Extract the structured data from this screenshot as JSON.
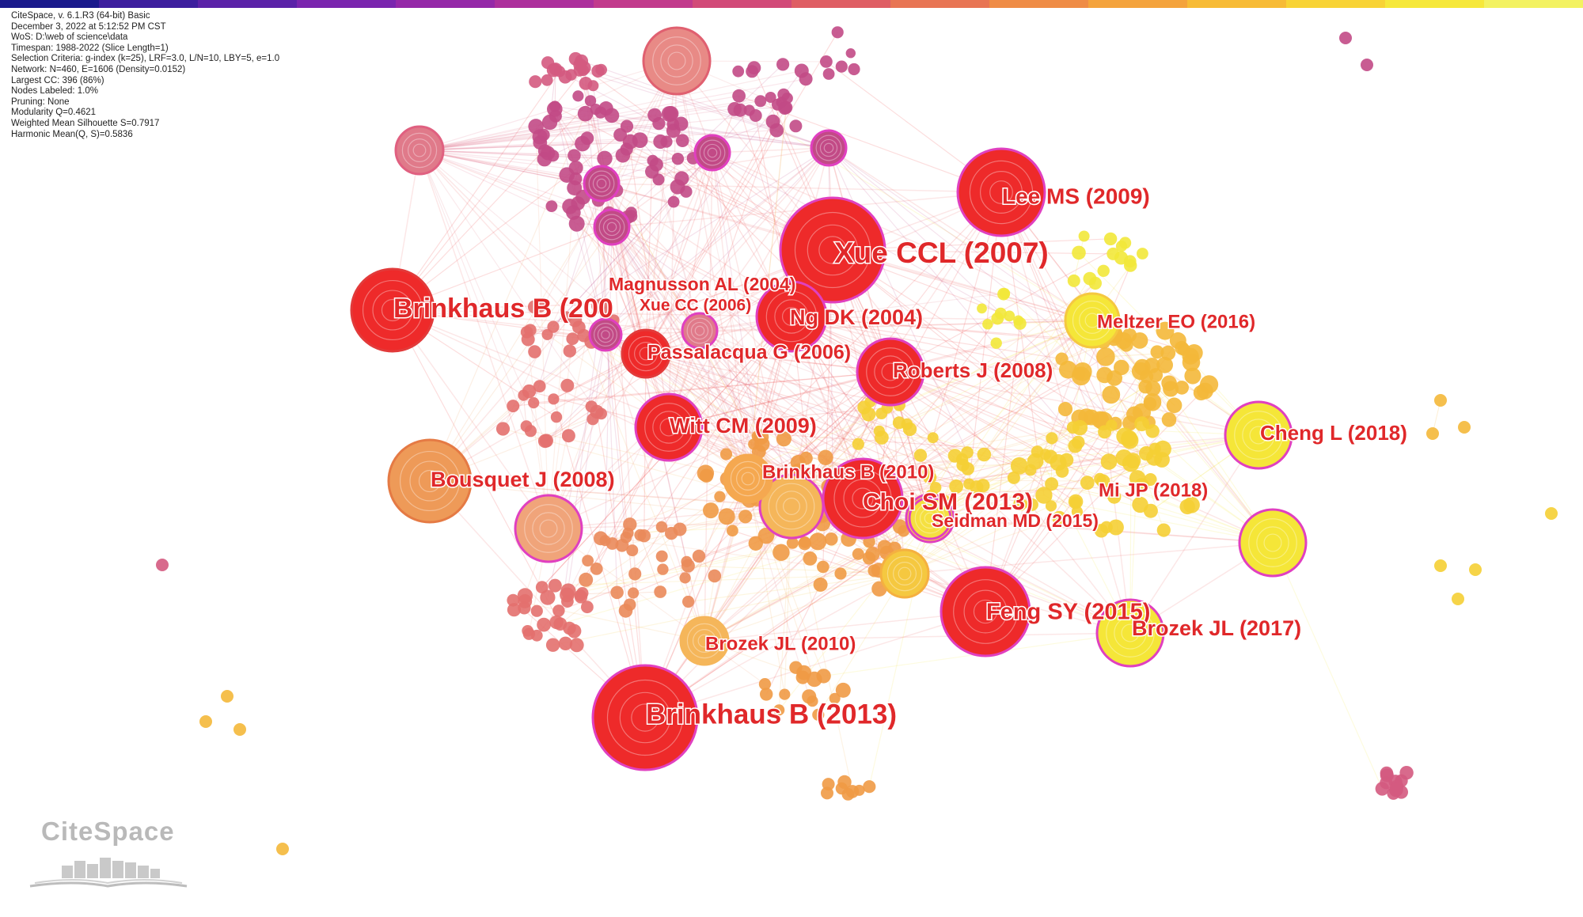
{
  "info_lines": [
    "CiteSpace, v. 6.1.R3 (64-bit) Basic",
    "December 3, 2022 at 5:12:52 PM CST",
    "WoS: D:\\web of science\\data",
    "Timespan: 1988-2022 (Slice Length=1)",
    "Selection Criteria: g-index (k=25), LRF=3.0, L/N=10, LBY=5, e=1.0",
    "Network: N=460, E=1606 (Density=0.0152)",
    "Largest CC: 396 (86%)",
    "Nodes Labeled: 1.0%",
    "Pruning: None",
    "Modularity Q=0.4621",
    "Weighted Mean Silhouette S=0.7917",
    "Harmonic Mean(Q, S)=0.5836"
  ],
  "logo": {
    "text": "CiteSpace"
  },
  "timeline_colors": [
    "#1a1a8c",
    "#3d1f9e",
    "#5b22a8",
    "#7a25ae",
    "#9528a8",
    "#ad2f9c",
    "#c23a8c",
    "#d24a78",
    "#df5e64",
    "#e87554",
    "#ef8c46",
    "#f4a33c",
    "#f7bb36",
    "#f8d335",
    "#f6e83a",
    "#f3f261"
  ],
  "year_colors": {
    "1": "#c24a86",
    "2": "#d45a80",
    "3": "#e3706e",
    "4": "#ea8a5a",
    "5": "#f09a45",
    "6": "#f4b83a",
    "7": "#f5cf34",
    "8": "#f2e83a"
  },
  "labels": [
    {
      "text": "Xue CCL (2007)",
      "size": 37
    },
    {
      "text": "Brinkhaus B (200",
      "size": 34
    },
    {
      "text": "Brinkhaus B (2013)",
      "size": 35
    },
    {
      "text": "Lee MS (2009)",
      "size": 28
    },
    {
      "text": "Choi SM (2013)",
      "size": 30
    },
    {
      "text": "Feng SY (2015)",
      "size": 29
    },
    {
      "text": "Witt CM (2009)",
      "size": 27
    },
    {
      "text": "Ng DK (2004)",
      "size": 27
    },
    {
      "text": "Roberts J (2008)",
      "size": 26
    },
    {
      "text": "Bousquet J (2008)",
      "size": 27
    },
    {
      "text": "Passalacqua G (2006)",
      "size": 25
    },
    {
      "text": "Magnusson AL (2004)",
      "size": 23
    },
    {
      "text": "Xue CC (2006)",
      "size": 21
    },
    {
      "text": "Meltzer EO (2016)",
      "size": 24
    },
    {
      "text": "Cheng L (2018)",
      "size": 26
    },
    {
      "text": "Mi JP (2018)",
      "size": 24
    },
    {
      "text": "Seidman MD (2015)",
      "size": 23
    },
    {
      "text": "Brinkhaus B (2010)",
      "size": 24
    },
    {
      "text": "Brozek JL (2010)",
      "size": 24
    },
    {
      "text": "Brozek JL (2017)",
      "size": 27
    }
  ]
}
